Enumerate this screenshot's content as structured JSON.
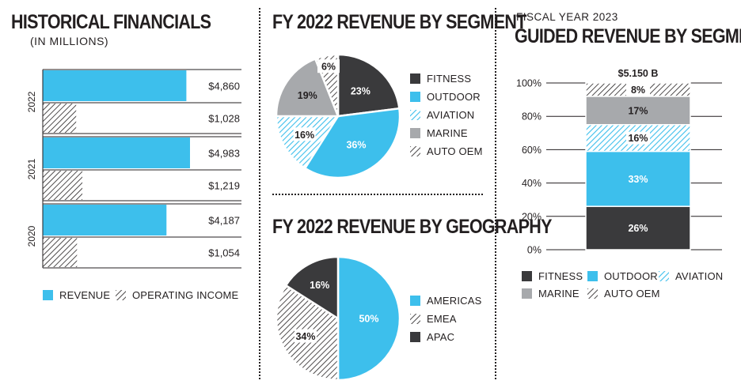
{
  "colors": {
    "fitness": "#3a3a3c",
    "outdoor": "#3dbfec",
    "aviation": "#3dbfec",
    "marine": "#a7a9ac",
    "auto_oem": "#231f20",
    "text": "#231f20",
    "grid": "#231f20"
  },
  "historical": {
    "title": "HISTORICAL FINANCIALS",
    "subtitle": "(IN MILLIONS)",
    "legend": [
      {
        "label": "REVENUE",
        "pattern": "solid-blue"
      },
      {
        "label": "OPERATING INCOME",
        "pattern": "hatch"
      }
    ]
  },
  "segment": {
    "title": "FY 2022 REVENUE BY SEGMENT",
    "legend": [
      {
        "label": "FITNESS",
        "pattern": "solid-dark"
      },
      {
        "label": "OUTDOOR",
        "pattern": "solid-blue"
      },
      {
        "label": "AVIATION",
        "pattern": "hatch-blue"
      },
      {
        "label": "MARINE",
        "pattern": "solid-gray"
      },
      {
        "label": "AUTO OEM",
        "pattern": "hatch"
      }
    ]
  },
  "geography": {
    "title": "FY 2022 REVENUE BY GEOGRAPHY",
    "legend": [
      {
        "label": "AMERICAS",
        "pattern": "solid-blue"
      },
      {
        "label": "EMEA",
        "pattern": "hatch"
      },
      {
        "label": "APAC",
        "pattern": "solid-dark"
      }
    ]
  },
  "guided": {
    "supertitle": "FISCAL YEAR 2023",
    "title": "GUIDED REVENUE BY SEGMENT",
    "legend": [
      {
        "label": "FITNESS",
        "pattern": "solid-dark"
      },
      {
        "label": "OUTDOOR",
        "pattern": "solid-blue"
      },
      {
        "label": "AVIATION",
        "pattern": "hatch-blue"
      },
      {
        "label": "MARINE",
        "pattern": "solid-gray"
      },
      {
        "label": "AUTO OEM",
        "pattern": "hatch"
      }
    ]
  },
  "chart_data": [
    {
      "type": "bar",
      "orientation": "horizontal",
      "title": "HISTORICAL FINANCIALS",
      "subtitle": "(IN MILLIONS)",
      "categories": [
        "2022",
        "2021",
        "2020"
      ],
      "series": [
        {
          "name": "REVENUE",
          "values": [
            4860,
            4983,
            4187
          ],
          "labels": [
            "$4,860",
            "$4,983",
            "$4,187"
          ]
        },
        {
          "name": "OPERATING INCOME",
          "values": [
            1028,
            1219,
            1054
          ],
          "labels": [
            "$1,028",
            "$1,219",
            "$1,054"
          ]
        }
      ],
      "xlim": [
        0,
        6000
      ],
      "legend_position": "bottom"
    },
    {
      "type": "pie",
      "title": "FY 2022 REVENUE BY SEGMENT",
      "slices": [
        {
          "name": "FITNESS",
          "value": 23,
          "label": "23%"
        },
        {
          "name": "OUTDOOR",
          "value": 36,
          "label": "36%"
        },
        {
          "name": "AVIATION",
          "value": 16,
          "label": "16%"
        },
        {
          "name": "MARINE",
          "value": 19,
          "label": "19%"
        },
        {
          "name": "AUTO OEM",
          "value": 6,
          "label": "6%"
        }
      ],
      "legend_position": "right"
    },
    {
      "type": "pie",
      "title": "FY 2022 REVENUE BY GEOGRAPHY",
      "slices": [
        {
          "name": "AMERICAS",
          "value": 50,
          "label": "50%"
        },
        {
          "name": "EMEA",
          "value": 34,
          "label": "34%"
        },
        {
          "name": "APAC",
          "value": 16,
          "label": "16%"
        }
      ],
      "legend_position": "right"
    },
    {
      "type": "bar",
      "stacked": true,
      "title": "GUIDED REVENUE BY SEGMENT",
      "subtitle": "FISCAL YEAR 2023",
      "total_label": "$5.150 B",
      "segments": [
        {
          "name": "FITNESS",
          "value": 26,
          "label": "26%"
        },
        {
          "name": "OUTDOOR",
          "value": 33,
          "label": "33%"
        },
        {
          "name": "AVIATION",
          "value": 16,
          "label": "16%"
        },
        {
          "name": "MARINE",
          "value": 17,
          "label": "17%"
        },
        {
          "name": "AUTO OEM",
          "value": 8,
          "label": "8%"
        }
      ],
      "ylim": [
        0,
        100
      ],
      "yticks": [
        "0%",
        "20%",
        "40%",
        "60%",
        "80%",
        "100%"
      ],
      "grid": true,
      "legend_position": "bottom"
    }
  ]
}
